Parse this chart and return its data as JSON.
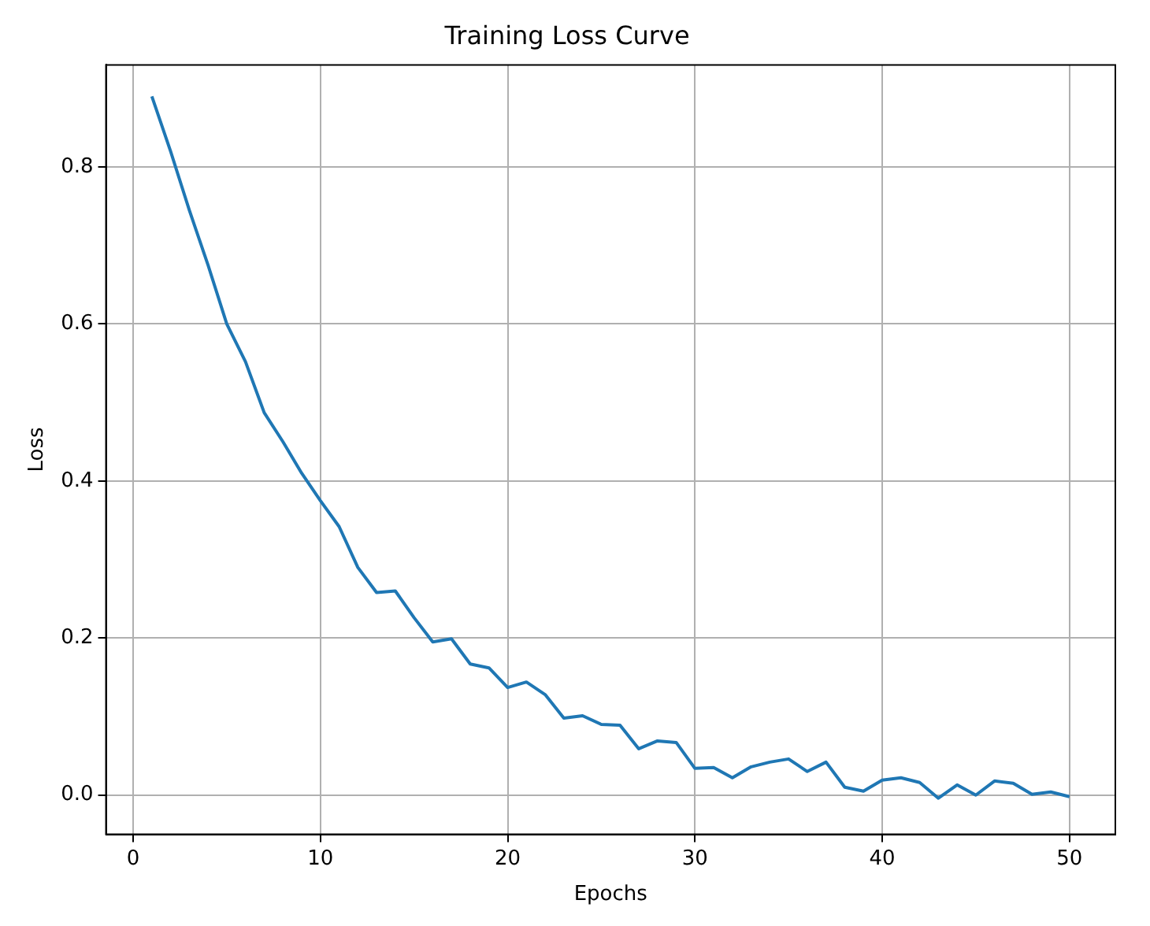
{
  "chart_data": {
    "type": "line",
    "title": "Training Loss Curve",
    "xlabel": "Epochs",
    "ylabel": "Loss",
    "x": [
      1,
      2,
      3,
      4,
      5,
      6,
      7,
      8,
      9,
      10,
      11,
      12,
      13,
      14,
      15,
      16,
      17,
      18,
      19,
      20,
      21,
      22,
      23,
      24,
      25,
      26,
      27,
      28,
      29,
      30,
      31,
      32,
      33,
      34,
      35,
      36,
      37,
      38,
      39,
      40,
      41,
      42,
      43,
      44,
      45,
      46,
      47,
      48,
      49,
      50
    ],
    "series": [
      {
        "color": "#1f77b4",
        "values": [
          0.89,
          0.82,
          0.745,
          0.675,
          0.6,
          0.552,
          0.487,
          0.45,
          0.41,
          0.375,
          0.342,
          0.29,
          0.258,
          0.26,
          0.226,
          0.195,
          0.199,
          0.167,
          0.162,
          0.137,
          0.144,
          0.128,
          0.098,
          0.101,
          0.09,
          0.089,
          0.059,
          0.069,
          0.067,
          0.034,
          0.035,
          0.022,
          0.036,
          0.042,
          0.046,
          0.03,
          0.042,
          0.01,
          0.005,
          0.019,
          0.022,
          0.016,
          -0.004,
          0.013,
          0.0,
          0.018,
          0.015,
          0.001,
          0.004,
          -0.002
        ]
      }
    ],
    "xlim": [
      -1.45,
      52.45
    ],
    "ylim": [
      -0.05,
      0.93
    ],
    "xticks": [
      0,
      10,
      20,
      30,
      40,
      50
    ],
    "yticks": [
      {
        "value": 0,
        "label": "0.0"
      },
      {
        "value": 0.2,
        "label": "0.2"
      },
      {
        "value": 0.4,
        "label": "0.4"
      },
      {
        "value": 0.6,
        "label": "0.6"
      },
      {
        "value": 0.8,
        "label": "0.8"
      }
    ],
    "grid": true,
    "line_style": "solid",
    "marker": "none",
    "legend": false
  }
}
